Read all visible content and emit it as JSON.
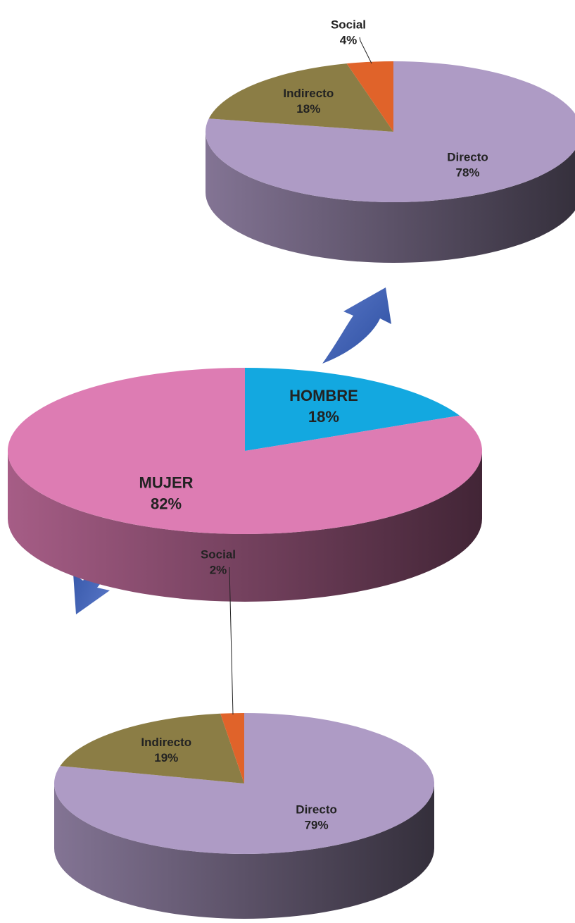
{
  "chart_data": [
    {
      "type": "pie",
      "categories": [
        "Directo",
        "Indirecto",
        "Social"
      ],
      "values": [
        78,
        18,
        4
      ],
      "value_labels": [
        "78%",
        "18%",
        "4%"
      ],
      "colors": [
        "#ae9bc5",
        "#8b7d45",
        "#e0632a"
      ]
    },
    {
      "type": "pie",
      "categories": [
        "HOMBRE",
        "MUJER"
      ],
      "values": [
        18,
        82
      ],
      "value_labels": [
        "18%",
        "82%"
      ],
      "colors": [
        "#13a8e0",
        "#dd7cb3"
      ]
    },
    {
      "type": "pie",
      "categories": [
        "Directo",
        "Indirecto",
        "Social"
      ],
      "values": [
        79,
        19,
        2
      ],
      "value_labels": [
        "79%",
        "19%",
        "2%"
      ],
      "colors": [
        "#ae9bc5",
        "#8b7d45",
        "#e0632a"
      ]
    }
  ]
}
